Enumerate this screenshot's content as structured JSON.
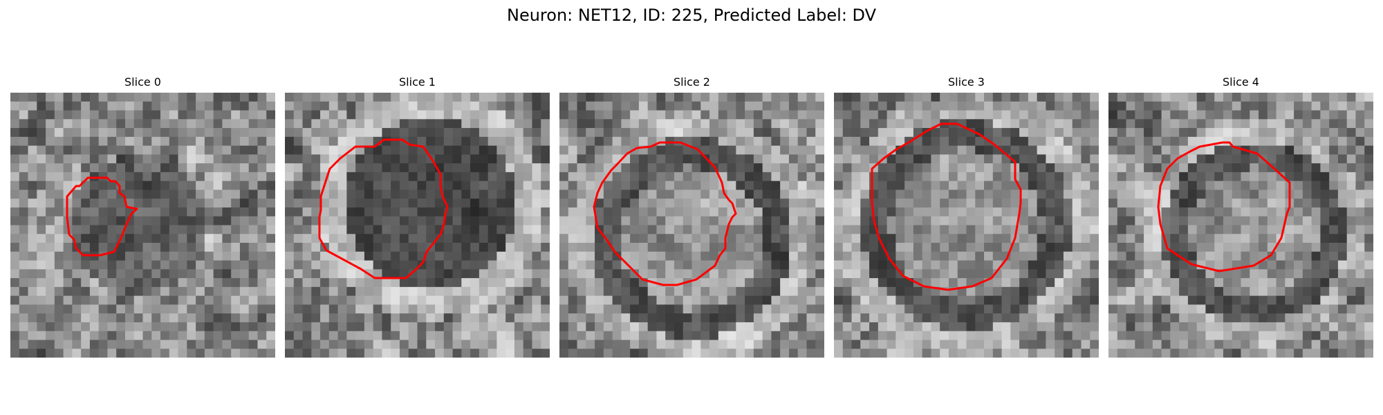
{
  "figure": {
    "title": "Neuron: NET12, ID: 225, Predicted Label: DV"
  },
  "panels": [
    {
      "title": "Slice 0"
    },
    {
      "title": "Slice 1"
    },
    {
      "title": "Slice 2"
    },
    {
      "title": "Slice 3"
    },
    {
      "title": "Slice 4"
    }
  ],
  "colors": {
    "contour": "#ff0000",
    "background": "#ffffff"
  }
}
